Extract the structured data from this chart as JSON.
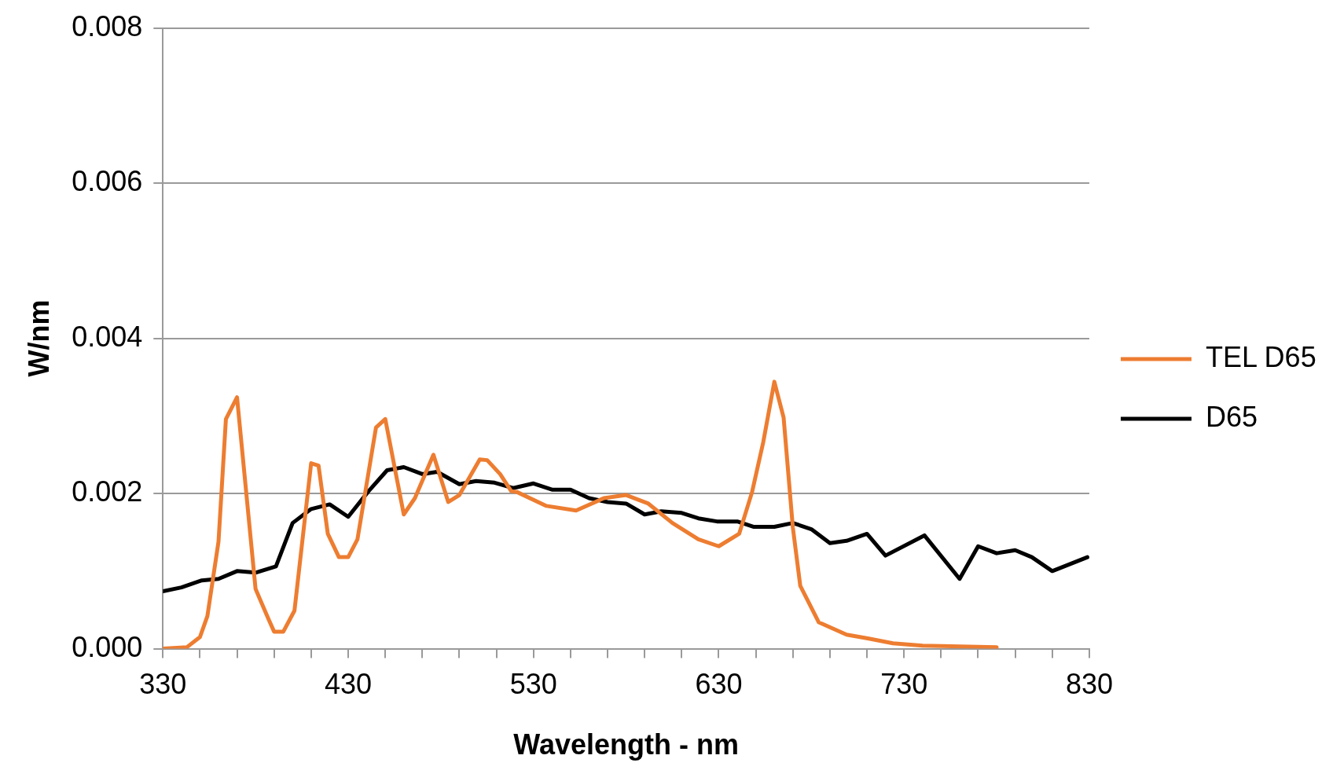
{
  "chart_data": {
    "type": "line",
    "xlabel": "Wavelength - nm",
    "ylabel": "W/nm",
    "xlim": [
      330,
      830
    ],
    "xticks": [
      330,
      {
        "value": 350,
        "label": null
      },
      {
        "value": 370,
        "label": null
      },
      {
        "value": 390,
        "label": null
      },
      {
        "value": 410,
        "label": null
      },
      430,
      {
        "value": 450,
        "label": null
      },
      {
        "value": 470,
        "label": null
      },
      {
        "value": 490,
        "label": null
      },
      {
        "value": 510,
        "label": null
      },
      530,
      {
        "value": 550,
        "label": null
      },
      {
        "value": 570,
        "label": null
      },
      {
        "value": 590,
        "label": null
      },
      {
        "value": 610,
        "label": null
      },
      630,
      {
        "value": 650,
        "label": null
      },
      {
        "value": 670,
        "label": null
      },
      {
        "value": 690,
        "label": null
      },
      {
        "value": 710,
        "label": null
      },
      730,
      {
        "value": 750,
        "label": null
      },
      {
        "value": 770,
        "label": null
      },
      {
        "value": 790,
        "label": null
      },
      {
        "value": 810,
        "label": null
      },
      830
    ],
    "ylim": [
      0,
      0.008
    ],
    "yticks": [
      {
        "value": 0,
        "label": "0.000"
      },
      0.002,
      0.004,
      0.006,
      0.008
    ],
    "grid": "y",
    "legend": "right",
    "marker": "none",
    "line_style": "solid",
    "series": [
      {
        "name": "TEL D65",
        "color": "#ed7d31",
        "x": [
          330,
          343,
          350,
          354,
          360,
          364,
          370,
          380,
          387,
          390,
          395,
          401,
          410,
          414,
          419,
          425,
          430,
          435,
          445,
          450,
          460,
          466,
          476,
          484,
          490,
          501,
          505,
          512,
          518,
          521,
          537,
          553,
          568,
          580,
          592,
          605,
          619,
          630,
          641,
          648,
          654,
          660,
          665,
          670,
          674,
          684,
          699,
          711,
          724,
          740,
          780
        ],
        "values": [
          0,
          2e-05,
          0.00015,
          0.00042,
          0.00138,
          0.00296,
          0.00324,
          0.00077,
          0.00038,
          0.00022,
          0.00022,
          0.00049,
          0.00239,
          0.00236,
          0.00148,
          0.00118,
          0.00118,
          0.00141,
          0.00285,
          0.00296,
          0.00173,
          0.00194,
          0.0025,
          0.00189,
          0.00198,
          0.00244,
          0.00243,
          0.00225,
          0.00203,
          0.00202,
          0.00184,
          0.00178,
          0.00194,
          0.00198,
          0.00187,
          0.00162,
          0.00141,
          0.00132,
          0.00148,
          0.00202,
          0.00266,
          0.00344,
          0.00298,
          0.00156,
          0.00081,
          0.00034,
          0.00018,
          0.00013,
          7e-05,
          4e-05,
          2e-05
        ]
      },
      {
        "name": "D65",
        "color": "#000000",
        "x": [
          330,
          340,
          351,
          360,
          370,
          380,
          391,
          400,
          410,
          420,
          430,
          441,
          451,
          460,
          470,
          478,
          490,
          499,
          509,
          519,
          530,
          540,
          550,
          560,
          570,
          580,
          590,
          599,
          610,
          619,
          629,
          640,
          649,
          660,
          670,
          680,
          690,
          699,
          710,
          720,
          741,
          760,
          770,
          780,
          790,
          799,
          810,
          829
        ],
        "values": [
          0.00074,
          0.00079,
          0.00088,
          0.0009,
          0.001,
          0.00098,
          0.00106,
          0.00162,
          0.0018,
          0.00186,
          0.0017,
          0.00203,
          0.0023,
          0.00234,
          0.00225,
          0.00228,
          0.00212,
          0.00216,
          0.00214,
          0.00207,
          0.00213,
          0.00205,
          0.00205,
          0.00194,
          0.00189,
          0.00187,
          0.00173,
          0.00177,
          0.00175,
          0.00168,
          0.00164,
          0.00164,
          0.00157,
          0.00157,
          0.00162,
          0.00154,
          0.00136,
          0.00139,
          0.00148,
          0.0012,
          0.00146,
          0.0009,
          0.00132,
          0.00123,
          0.00127,
          0.00118,
          0.001,
          0.00118
        ]
      }
    ]
  }
}
